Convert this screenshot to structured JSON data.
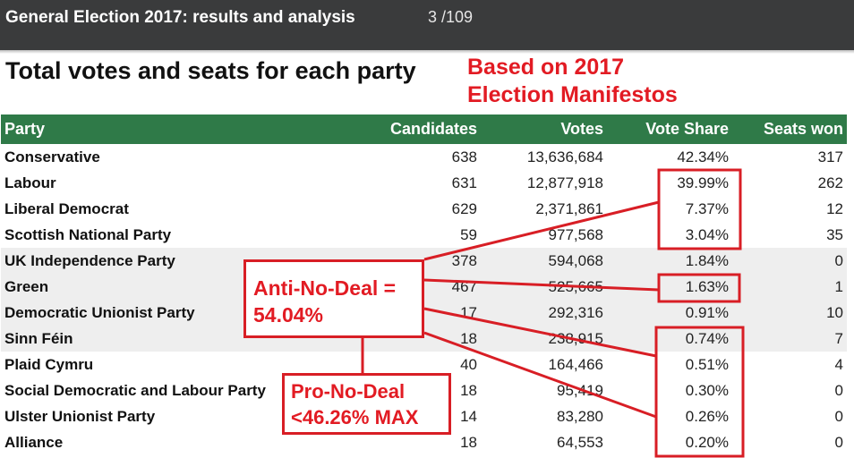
{
  "viewer": {
    "title": "General Election 2017: results and analysis",
    "page_indicator": "3 /109"
  },
  "heading": "Total votes and seats for each party",
  "annotations": {
    "manifesto_line1": "Based on 2017",
    "manifesto_line2": "Election Manifestos",
    "anti_line1": "Anti-No-Deal =",
    "anti_line2": "54.04%",
    "pro_line1": "Pro-No-Deal",
    "pro_line2": "<46.26% MAX",
    "highlight_color": "#d81e25"
  },
  "table": {
    "header_color": "#2f7a48",
    "columns": [
      "Party",
      "Candidates",
      "Votes",
      "Vote Share",
      "Seats won"
    ],
    "rows": [
      {
        "party": "Conservative",
        "candidates": "638",
        "votes": "13,636,684",
        "share": "42.34%",
        "seats": "317"
      },
      {
        "party": "Labour",
        "candidates": "631",
        "votes": "12,877,918",
        "share": "39.99%",
        "seats": "262"
      },
      {
        "party": "Liberal Democrat",
        "candidates": "629",
        "votes": "2,371,861",
        "share": "7.37%",
        "seats": "12"
      },
      {
        "party": "Scottish National Party",
        "candidates": "59",
        "votes": "977,568",
        "share": "3.04%",
        "seats": "35"
      },
      {
        "party": "UK Independence Party",
        "candidates": "378",
        "votes": "594,068",
        "share": "1.84%",
        "seats": "0"
      },
      {
        "party": "Green",
        "candidates": "467",
        "votes": "525,665",
        "share": "1.63%",
        "seats": "1"
      },
      {
        "party": "Democratic Unionist Party",
        "candidates": "17",
        "votes": "292,316",
        "share": "0.91%",
        "seats": "10"
      },
      {
        "party": "Sinn Féin",
        "candidates": "18",
        "votes": "238,915",
        "share": "0.74%",
        "seats": "7"
      },
      {
        "party": "Plaid Cymru",
        "candidates": "40",
        "votes": "164,466",
        "share": "0.51%",
        "seats": "4"
      },
      {
        "party": "Social Democratic and Labour Party",
        "candidates": "18",
        "votes": "95,419",
        "share": "0.30%",
        "seats": "0"
      },
      {
        "party": "Ulster Unionist Party",
        "candidates": "14",
        "votes": "83,280",
        "share": "0.26%",
        "seats": "0"
      },
      {
        "party": "Alliance",
        "candidates": "18",
        "votes": "64,553",
        "share": "0.20%",
        "seats": "0"
      }
    ]
  }
}
